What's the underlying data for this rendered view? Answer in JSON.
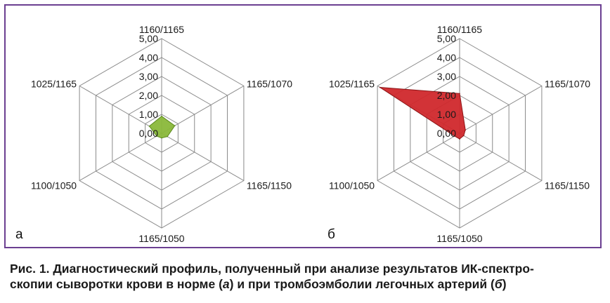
{
  "chart_data": [
    {
      "type": "radar",
      "panel_label": "а",
      "axes": [
        "1160/1165",
        "1165/1070",
        "1165/1150",
        "1165/1050",
        "1100/1050",
        "1025/1165"
      ],
      "ticks": [
        "0,00",
        "1,00",
        "2,00",
        "3,00",
        "4,00",
        "5,00"
      ],
      "range": [
        0,
        5
      ],
      "values": [
        0.9,
        0.8,
        0.35,
        0.25,
        0.3,
        0.75
      ],
      "fill_color": "#8ab83a",
      "stroke_color": "#5c8a1e",
      "grid": true
    },
    {
      "type": "radar",
      "panel_label": "б",
      "axes": [
        "1160/1165",
        "1165/1070",
        "1165/1150",
        "1165/1050",
        "1100/1050",
        "1025/1165"
      ],
      "ticks": [
        "0,00",
        "1,00",
        "2,00",
        "3,00",
        "4,00",
        "5,00"
      ],
      "range": [
        0,
        5
      ],
      "values": [
        2.1,
        0.35,
        0.25,
        0.3,
        0.3,
        4.85
      ],
      "fill_color": "#d0282c",
      "stroke_color": "#8c1416",
      "grid": true
    }
  ],
  "caption": {
    "text": "Рис. 1. Диагностический профиль, полученный при анализе результатов ИК-спектроскопии сыворотки крови в норме (а) и при тромбоэмболии легочных артерий (б)",
    "line1": "Рис. 1. Диагностический профиль, полученный при анализе результатов ИК-спектро-",
    "line2_prefix": "скопии сыворотки крови в норме (",
    "line2_a": "а",
    "line2_mid": ") и при тромбоэмболии легочных артерий (",
    "line2_b": "б",
    "line2_suffix": ")"
  }
}
